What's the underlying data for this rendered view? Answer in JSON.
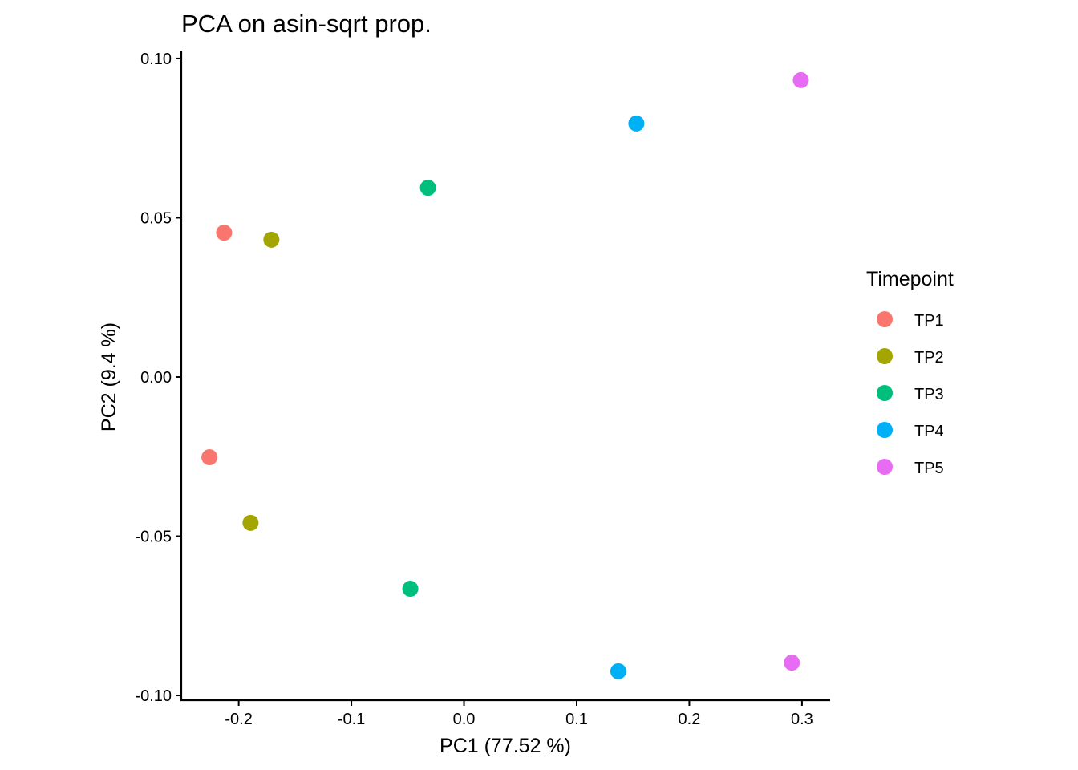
{
  "chart_data": {
    "type": "scatter",
    "title": "PCA on asin-sqrt prop.",
    "xlabel": "PC1 (77.52 %)",
    "ylabel": "PC2 (9.4 %)",
    "xlim": [
      -0.251,
      0.325
    ],
    "ylim": [
      -0.1015,
      0.1025
    ],
    "xticks": [
      -0.2,
      -0.1,
      0.0,
      0.1,
      0.2,
      0.3
    ],
    "xtick_labels": [
      "-0.2",
      "-0.1",
      "0.0",
      "0.1",
      "0.2",
      "0.3"
    ],
    "yticks": [
      -0.1,
      -0.05,
      0.0,
      0.05,
      0.1
    ],
    "ytick_labels": [
      "-0.10",
      "-0.05",
      "0.00",
      "0.05",
      "0.10"
    ],
    "grid": false,
    "legend": {
      "title": "Timepoint",
      "placement": "right"
    },
    "series": [
      {
        "name": "TP1",
        "color": "#F8766D",
        "points": [
          [
            -0.213,
            0.0453
          ],
          [
            -0.226,
            -0.0252
          ]
        ]
      },
      {
        "name": "TP2",
        "color": "#A3A500",
        "points": [
          [
            -0.171,
            0.0431
          ],
          [
            -0.1895,
            -0.0458
          ]
        ]
      },
      {
        "name": "TP3",
        "color": "#00BF7D",
        "points": [
          [
            -0.032,
            0.0594
          ],
          [
            -0.0477,
            -0.0665
          ]
        ]
      },
      {
        "name": "TP4",
        "color": "#00B0F6",
        "points": [
          [
            0.153,
            0.0796
          ],
          [
            0.137,
            -0.0924
          ]
        ]
      },
      {
        "name": "TP5",
        "color": "#E76BF3",
        "points": [
          [
            0.299,
            0.0932
          ],
          [
            0.291,
            -0.0897
          ]
        ]
      }
    ]
  }
}
